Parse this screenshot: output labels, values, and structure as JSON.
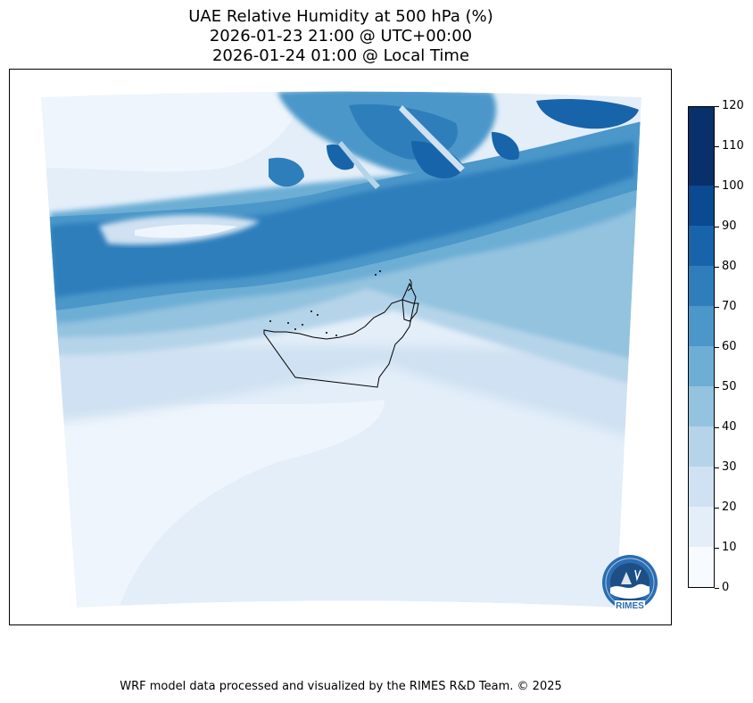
{
  "title": {
    "line1": "UAE Relative Humidity at 500 hPa (%)",
    "line2": "2026-01-23 21:00 @ UTC+00:00",
    "line3": "2026-01-24 01:00 @ Local Time"
  },
  "colorbar": {
    "ticks": [
      "0",
      "10",
      "20",
      "30",
      "40",
      "50",
      "60",
      "70",
      "80",
      "90",
      "100",
      "110",
      "120"
    ],
    "colors": [
      "#f7fbff",
      "#e3eef9",
      "#cfe1f2",
      "#b5d4e9",
      "#93c3df",
      "#6daed5",
      "#4b97c9",
      "#2f7ebc",
      "#1864aa",
      "#0a4a90",
      "#08306b",
      "#08306b"
    ]
  },
  "logo": {
    "text": "RIMES"
  },
  "credit": "WRF model data processed and visualized by the RIMES R&D Team. © 2025"
}
